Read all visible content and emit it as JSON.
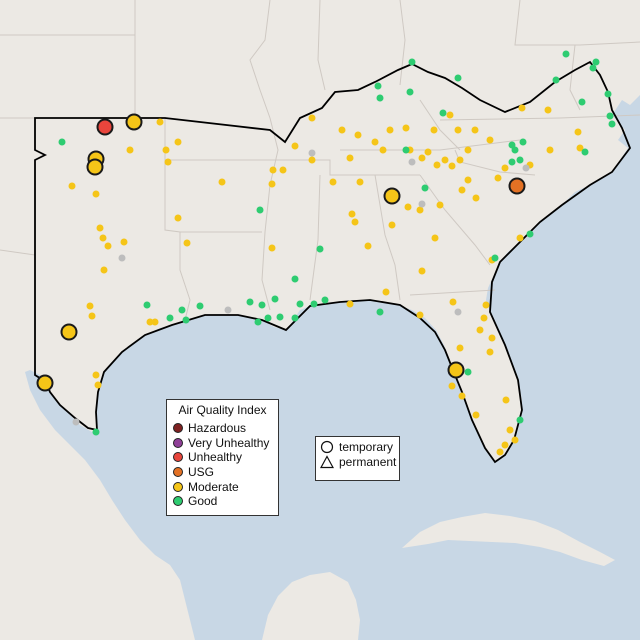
{
  "legend": {
    "title": "Air Quality Index",
    "categories": [
      {
        "label": "Hazardous",
        "color": "#7e2121"
      },
      {
        "label": "Very Unhealthy",
        "color": "#8f3f97"
      },
      {
        "label": "Unhealthy",
        "color": "#e8453c"
      },
      {
        "label": "USG",
        "color": "#e37124"
      },
      {
        "label": "Moderate",
        "color": "#f5c518"
      },
      {
        "label": "Good",
        "color": "#2ecc71"
      }
    ]
  },
  "shape_legend": {
    "temporary": "temporary",
    "permanent": "permanent"
  },
  "colors": {
    "water": "#c8d7e5",
    "land": "#ece9e4",
    "state_border": "#cfc9c3",
    "region_outline": "#000000",
    "no_data": "#bdbdbd"
  }
}
